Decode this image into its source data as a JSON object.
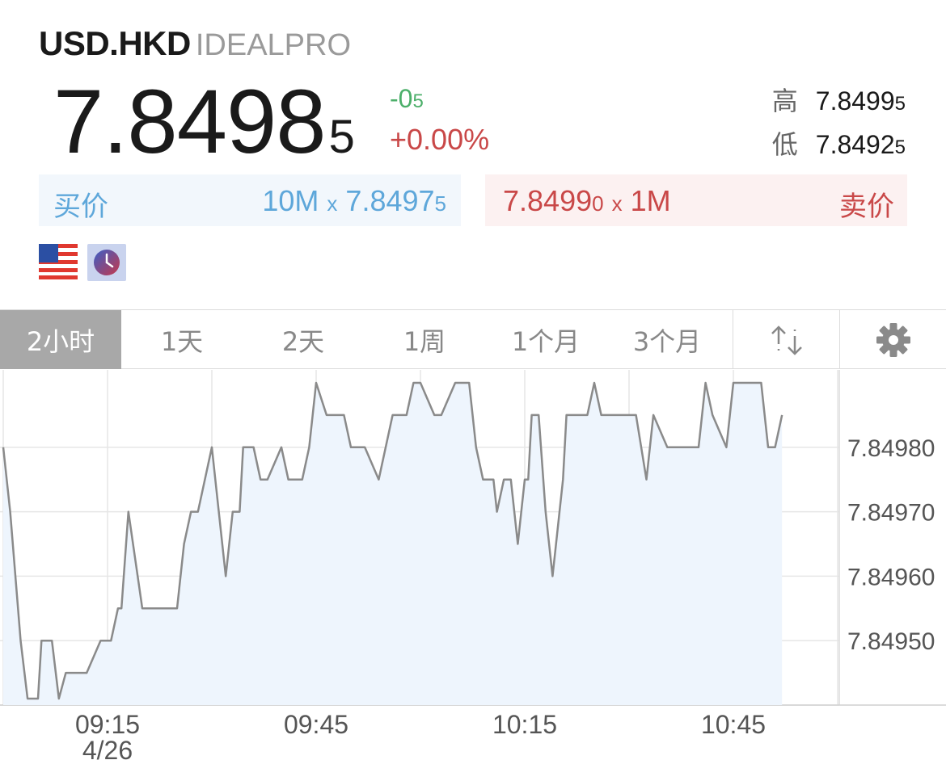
{
  "header": {
    "symbol": "USD.HKD",
    "exchange": "IDEALPRO"
  },
  "quote": {
    "last_main": "7.8498",
    "last_sub": "5",
    "change_main": "-0",
    "change_sub": "5",
    "change_pct": "+0.00%",
    "high_label": "高",
    "high_main": "7.8499",
    "high_sub": "5",
    "low_label": "低",
    "low_main": "7.8492",
    "low_sub": "5"
  },
  "bid": {
    "label": "买价",
    "size": "10M",
    "x": "x",
    "price_main": "7.8497",
    "price_sub": "5"
  },
  "ask": {
    "label": "卖价",
    "size": "1M",
    "x": "x",
    "price_main": "7.8499",
    "price_sub": "0"
  },
  "icons": {
    "flag": "us-flag-icon",
    "clock": "clock-icon",
    "sort": "sort-arrows-icon",
    "settings": "gear-icon"
  },
  "tabs": [
    {
      "label": "2小时",
      "active": true
    },
    {
      "label": "1天",
      "active": false
    },
    {
      "label": "2天",
      "active": false
    },
    {
      "label": "1周",
      "active": false
    },
    {
      "label": "1个月",
      "active": false
    },
    {
      "label": "3个月",
      "active": false
    }
  ],
  "colors": {
    "line": "#8a8a8a",
    "fill": "#eef5fd",
    "green": "#4caf6a",
    "red": "#c94848",
    "blue": "#5ea7da"
  },
  "chart_data": {
    "type": "area",
    "x_ticks": [
      "09:15",
      "09:45",
      "10:15",
      "10:45"
    ],
    "x_date_label": "4/26",
    "y_ticks": [
      "7.84980",
      "7.84970",
      "7.84960",
      "7.84950"
    ],
    "y_tick_values": [
      7.8498,
      7.8497,
      7.8496,
      7.8495
    ],
    "ylim": [
      7.8494,
      7.84992
    ],
    "x_range_minutes": [
      0,
      120
    ],
    "grid": true,
    "series": [
      {
        "x": [
          0,
          1,
          2.5,
          3.5,
          5,
          5.5,
          7,
          8,
          9,
          11,
          12,
          14,
          15.5,
          16.5,
          17,
          18,
          20,
          22,
          25,
          26,
          27,
          28,
          30,
          31,
          32,
          33,
          34,
          34.5,
          36,
          37,
          38,
          40,
          41,
          42,
          43,
          44,
          45,
          46.5,
          47.5,
          49,
          50,
          52,
          54,
          56,
          58,
          59,
          60,
          62,
          63,
          65,
          67,
          68,
          69,
          70.5,
          71,
          72,
          73,
          74,
          75,
          75.5,
          76,
          77,
          78,
          79,
          80.5,
          81,
          82,
          84,
          85,
          86,
          87.5,
          88,
          89,
          91,
          92.5,
          93.5,
          95.5,
          96,
          97,
          98.5,
          99,
          100,
          101,
          102,
          104,
          105,
          106,
          107,
          109,
          110,
          111,
          112
        ],
        "y": [
          7.8498,
          7.8497,
          7.8495,
          7.84941,
          7.84941,
          7.8495,
          7.8495,
          7.84941,
          7.84945,
          7.84945,
          7.84945,
          7.8495,
          7.8495,
          7.84955,
          7.84955,
          7.8497,
          7.84955,
          7.84955,
          7.84955,
          7.84965,
          7.8497,
          7.8497,
          7.8498,
          7.8497,
          7.8496,
          7.8497,
          7.8497,
          7.8498,
          7.8498,
          7.84975,
          7.84975,
          7.8498,
          7.84975,
          7.84975,
          7.84975,
          7.8498,
          7.8499,
          7.84985,
          7.84985,
          7.84985,
          7.8498,
          7.8498,
          7.84975,
          7.84985,
          7.84985,
          7.8499,
          7.8499,
          7.84985,
          7.84985,
          7.8499,
          7.8499,
          7.8498,
          7.84975,
          7.84975,
          7.8497,
          7.84975,
          7.84975,
          7.84965,
          7.84975,
          7.84975,
          7.84985,
          7.84985,
          7.8497,
          7.8496,
          7.84975,
          7.84985,
          7.84985,
          7.84985,
          7.8499,
          7.84985,
          7.84985,
          7.84985,
          7.84985,
          7.84985,
          7.84975,
          7.84985,
          7.8498,
          7.8498,
          7.8498,
          7.8498,
          7.8498,
          7.8498,
          7.8499,
          7.84985,
          7.8498,
          7.8499,
          7.8499,
          7.8499,
          7.8499,
          7.8498,
          7.8498,
          7.84985
        ]
      }
    ]
  }
}
